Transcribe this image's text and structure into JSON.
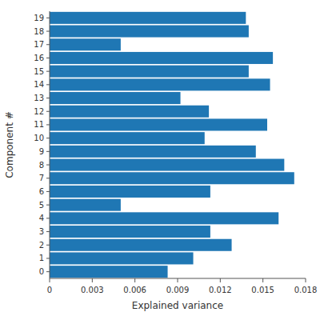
{
  "chart_data": {
    "type": "bar",
    "orientation": "horizontal",
    "categories": [
      "0",
      "1",
      "2",
      "3",
      "4",
      "5",
      "6",
      "7",
      "8",
      "9",
      "10",
      "11",
      "12",
      "13",
      "14",
      "15",
      "16",
      "17",
      "18",
      "19"
    ],
    "values": [
      0.0083,
      0.0101,
      0.0128,
      0.0113,
      0.0161,
      0.005,
      0.0113,
      0.0172,
      0.0165,
      0.0145,
      0.0109,
      0.0153,
      0.0112,
      0.0092,
      0.0155,
      0.014,
      0.0157,
      0.005,
      0.014,
      0.0138
    ],
    "color": "#1f77b4",
    "xlabel": "Explained variance",
    "ylabel": "Component #",
    "xlim": [
      0.0,
      0.018
    ],
    "xticks": [
      0,
      0.003,
      0.006,
      0.009,
      0.012,
      0.015,
      0.018
    ]
  }
}
